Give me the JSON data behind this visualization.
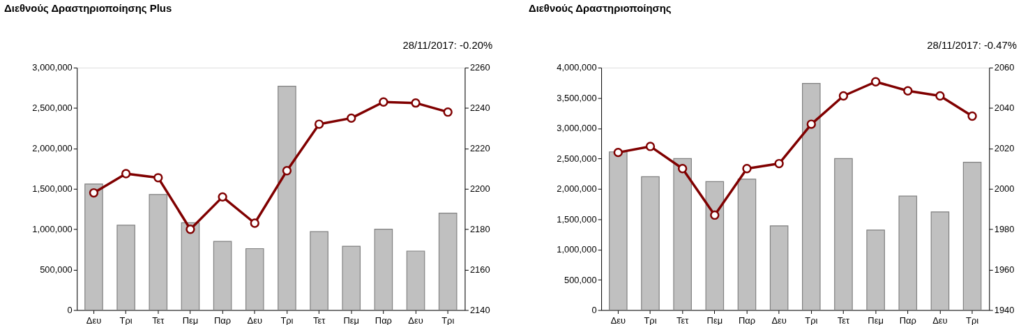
{
  "chart_data": [
    {
      "type": "bar",
      "title": "Διεθνούς Δραστηριοποίησης Plus",
      "annotations": [
        "28/11/2017: -0.20%"
      ],
      "categories": [
        "Δευ",
        "Τρι",
        "Τετ",
        "Πεμ",
        "Παρ",
        "Δευ",
        "Τρι",
        "Τετ",
        "Πεμ",
        "Παρ",
        "Δευ",
        "Τρι"
      ],
      "series": [
        {
          "type": "bar",
          "color": "#c0c0c0",
          "values": [
            1560000,
            1050000,
            1430000,
            1080000,
            850000,
            760000,
            2770000,
            970000,
            790000,
            1000000,
            730000,
            1200000
          ]
        },
        {
          "type": "line",
          "axis": "y2",
          "color": "#800000",
          "values": [
            2198,
            2207.5,
            2205.5,
            2180,
            2196,
            2183,
            2209,
            2232,
            2235,
            2243,
            2242.5,
            2238
          ]
        }
      ],
      "marker": "circle",
      "ylim": [
        0,
        3000000
      ],
      "yticks": [
        0,
        {
          "value": 500000,
          "label": "500,000"
        },
        {
          "value": 1000000,
          "label": "1,000,000"
        },
        {
          "value": 1500000,
          "label": "1,500,000"
        },
        {
          "value": 2000000,
          "label": "2,000,000"
        },
        {
          "value": 2500000,
          "label": "2,500,000"
        },
        {
          "value": 3000000,
          "label": "3,000,000"
        }
      ],
      "y2lim": [
        2140,
        2260
      ],
      "y2ticks": [
        2140,
        2160,
        2180,
        2200,
        2220,
        2240,
        2260
      ]
    },
    {
      "type": "bar",
      "title": "Διεθνούς Δραστηριοποίησης",
      "annotations": [
        "28/11/2017: -0.47%"
      ],
      "categories": [
        "Δευ",
        "Τρι",
        "Τετ",
        "Πεμ",
        "Παρ",
        "Δευ",
        "Τρι",
        "Τετ",
        "Πεμ",
        "Παρ",
        "Δευ",
        "Τρι"
      ],
      "series": [
        {
          "type": "bar",
          "color": "#c0c0c0",
          "values": [
            2610000,
            2200000,
            2500000,
            2120000,
            2160000,
            1390000,
            3740000,
            2500000,
            1320000,
            1880000,
            1620000,
            2440000
          ]
        },
        {
          "type": "line",
          "axis": "y2",
          "color": "#800000",
          "values": [
            2018,
            2021,
            2010,
            1987,
            2010,
            2012.5,
            2032,
            2046,
            2053,
            2048.5,
            2046,
            2036
          ]
        }
      ],
      "marker": "circle",
      "ylim": [
        0,
        4000000
      ],
      "yticks": [
        0,
        {
          "value": 500000,
          "label": "500,000"
        },
        {
          "value": 1000000,
          "label": "1,000,000"
        },
        {
          "value": 1500000,
          "label": "1,500,000"
        },
        {
          "value": 2000000,
          "label": "2,000,000"
        },
        {
          "value": 2500000,
          "label": "2,500,000"
        },
        {
          "value": 3000000,
          "label": "3,000,000"
        },
        {
          "value": 3500000,
          "label": "3,500,000"
        },
        {
          "value": 4000000,
          "label": "4,000,000"
        }
      ],
      "y2lim": [
        1940,
        2060
      ],
      "y2ticks": [
        1940,
        1960,
        1980,
        2000,
        2020,
        2040,
        2060
      ]
    }
  ]
}
